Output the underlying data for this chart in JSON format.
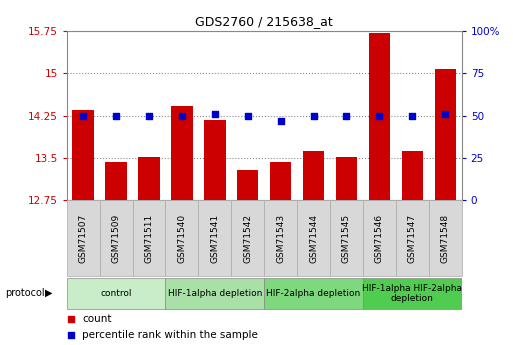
{
  "title": "GDS2760 / 215638_at",
  "samples": [
    "GSM71507",
    "GSM71509",
    "GSM71511",
    "GSM71540",
    "GSM71541",
    "GSM71542",
    "GSM71543",
    "GSM71544",
    "GSM71545",
    "GSM71546",
    "GSM71547",
    "GSM71548"
  ],
  "counts": [
    14.35,
    13.42,
    13.52,
    14.42,
    14.18,
    13.29,
    13.42,
    13.62,
    13.52,
    15.72,
    13.62,
    15.08
  ],
  "percentiles": [
    50,
    50,
    50,
    50,
    51,
    50,
    47,
    50,
    50,
    50,
    50,
    51
  ],
  "ylim_left": [
    12.75,
    15.75
  ],
  "ylim_right": [
    0,
    100
  ],
  "yticks_left": [
    12.75,
    13.5,
    14.25,
    15.0,
    15.75
  ],
  "ytick_labels_left": [
    "12.75",
    "13.5",
    "14.25",
    "15",
    "15.75"
  ],
  "yticks_right": [
    0,
    25,
    50,
    75,
    100
  ],
  "ytick_labels_right": [
    "0",
    "25",
    "50",
    "75",
    "100%"
  ],
  "bar_color": "#cc0000",
  "dot_color": "#0000cc",
  "groups": [
    {
      "label": "control",
      "start": 0,
      "end": 2,
      "color": "#c8edc8"
    },
    {
      "label": "HIF-1alpha depletion",
      "start": 3,
      "end": 5,
      "color": "#a8e0a8"
    },
    {
      "label": "HIF-2alpha depletion",
      "start": 6,
      "end": 8,
      "color": "#7ed87e"
    },
    {
      "label": "HIF-1alpha HIF-2alpha\ndepletion",
      "start": 9,
      "end": 11,
      "color": "#50cc50"
    }
  ],
  "sample_box_color": "#d8d8d8",
  "sample_box_edge": "#aaaaaa",
  "grid_linestyle": "dotted",
  "grid_color": "#888888",
  "background_color": "#ffffff",
  "plot_bg_color": "#ffffff",
  "tick_label_color_left": "#cc0000",
  "tick_label_color_right": "#0000cc",
  "bar_width": 0.65,
  "protocol_label": "protocol",
  "title_fontsize": 9,
  "tick_fontsize": 7.5,
  "sample_fontsize": 6.5,
  "group_fontsize": 6.5,
  "legend_fontsize": 7.5
}
